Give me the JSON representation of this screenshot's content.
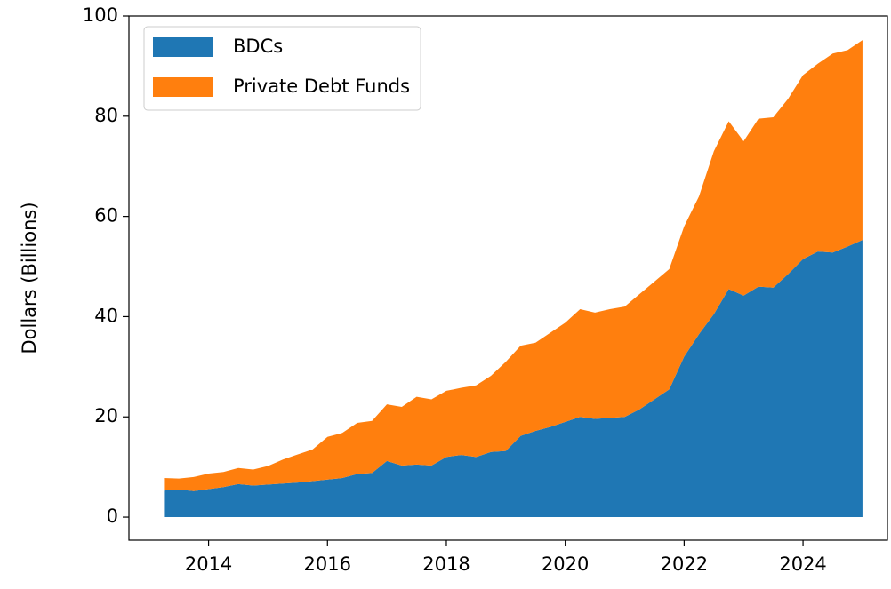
{
  "chart_data": {
    "type": "stacked_area",
    "y_label": "Dollars (Billions)",
    "x": [
      2013.25,
      2013.5,
      2013.75,
      2014.0,
      2014.25,
      2014.5,
      2014.75,
      2015.0,
      2015.25,
      2015.5,
      2015.75,
      2016.0,
      2016.25,
      2016.5,
      2016.75,
      2017.0,
      2017.25,
      2017.5,
      2017.75,
      2018.0,
      2018.25,
      2018.5,
      2018.75,
      2019.0,
      2019.25,
      2019.5,
      2019.75,
      2020.0,
      2020.25,
      2020.5,
      2020.75,
      2021.0,
      2021.25,
      2021.5,
      2021.75,
      2022.0,
      2022.25,
      2022.5,
      2022.75,
      2023.0,
      2023.25,
      2023.5,
      2023.75,
      2024.0,
      2024.25,
      2024.5,
      2024.75,
      2025.0
    ],
    "series": [
      {
        "name": "BDCs",
        "color": "#1f77b4",
        "values": [
          5.3,
          5.5,
          5.2,
          5.6,
          6.0,
          6.6,
          6.3,
          6.5,
          6.7,
          6.9,
          7.2,
          7.5,
          7.8,
          8.6,
          8.8,
          11.2,
          10.3,
          10.5,
          10.3,
          12.0,
          12.4,
          12.0,
          13.0,
          13.2,
          16.2,
          17.2,
          18.0,
          19.0,
          20.0,
          19.6,
          19.8,
          20.0,
          21.5,
          23.5,
          25.5,
          32.0,
          36.5,
          40.5,
          45.5,
          44.2,
          46.0,
          45.8,
          48.5,
          51.5,
          53.0,
          52.8,
          54.0,
          55.3
        ]
      },
      {
        "name": "Private Debt Funds",
        "color": "#ff7f0e",
        "values": [
          2.5,
          2.2,
          2.8,
          3.1,
          3.0,
          3.2,
          3.2,
          3.7,
          4.8,
          5.6,
          6.3,
          8.5,
          9.0,
          10.2,
          10.4,
          11.3,
          11.7,
          13.5,
          13.2,
          13.2,
          13.4,
          14.3,
          15.2,
          17.8,
          18.0,
          17.6,
          18.8,
          19.8,
          21.5,
          21.2,
          21.7,
          22.0,
          23.0,
          23.5,
          24.0,
          26.0,
          27.5,
          32.5,
          33.5,
          30.8,
          33.5,
          34.0,
          35.0,
          36.7,
          37.5,
          39.7,
          39.2,
          39.9
        ]
      }
    ],
    "xlim": [
      2012.66,
      2025.42
    ],
    "ylim": [
      -4.6,
      100
    ],
    "xticks": [
      2014,
      2016,
      2018,
      2020,
      2022,
      2024
    ],
    "yticks": [
      0,
      20,
      40,
      60,
      80,
      100
    ],
    "legend": "upper left",
    "grid": false
  }
}
